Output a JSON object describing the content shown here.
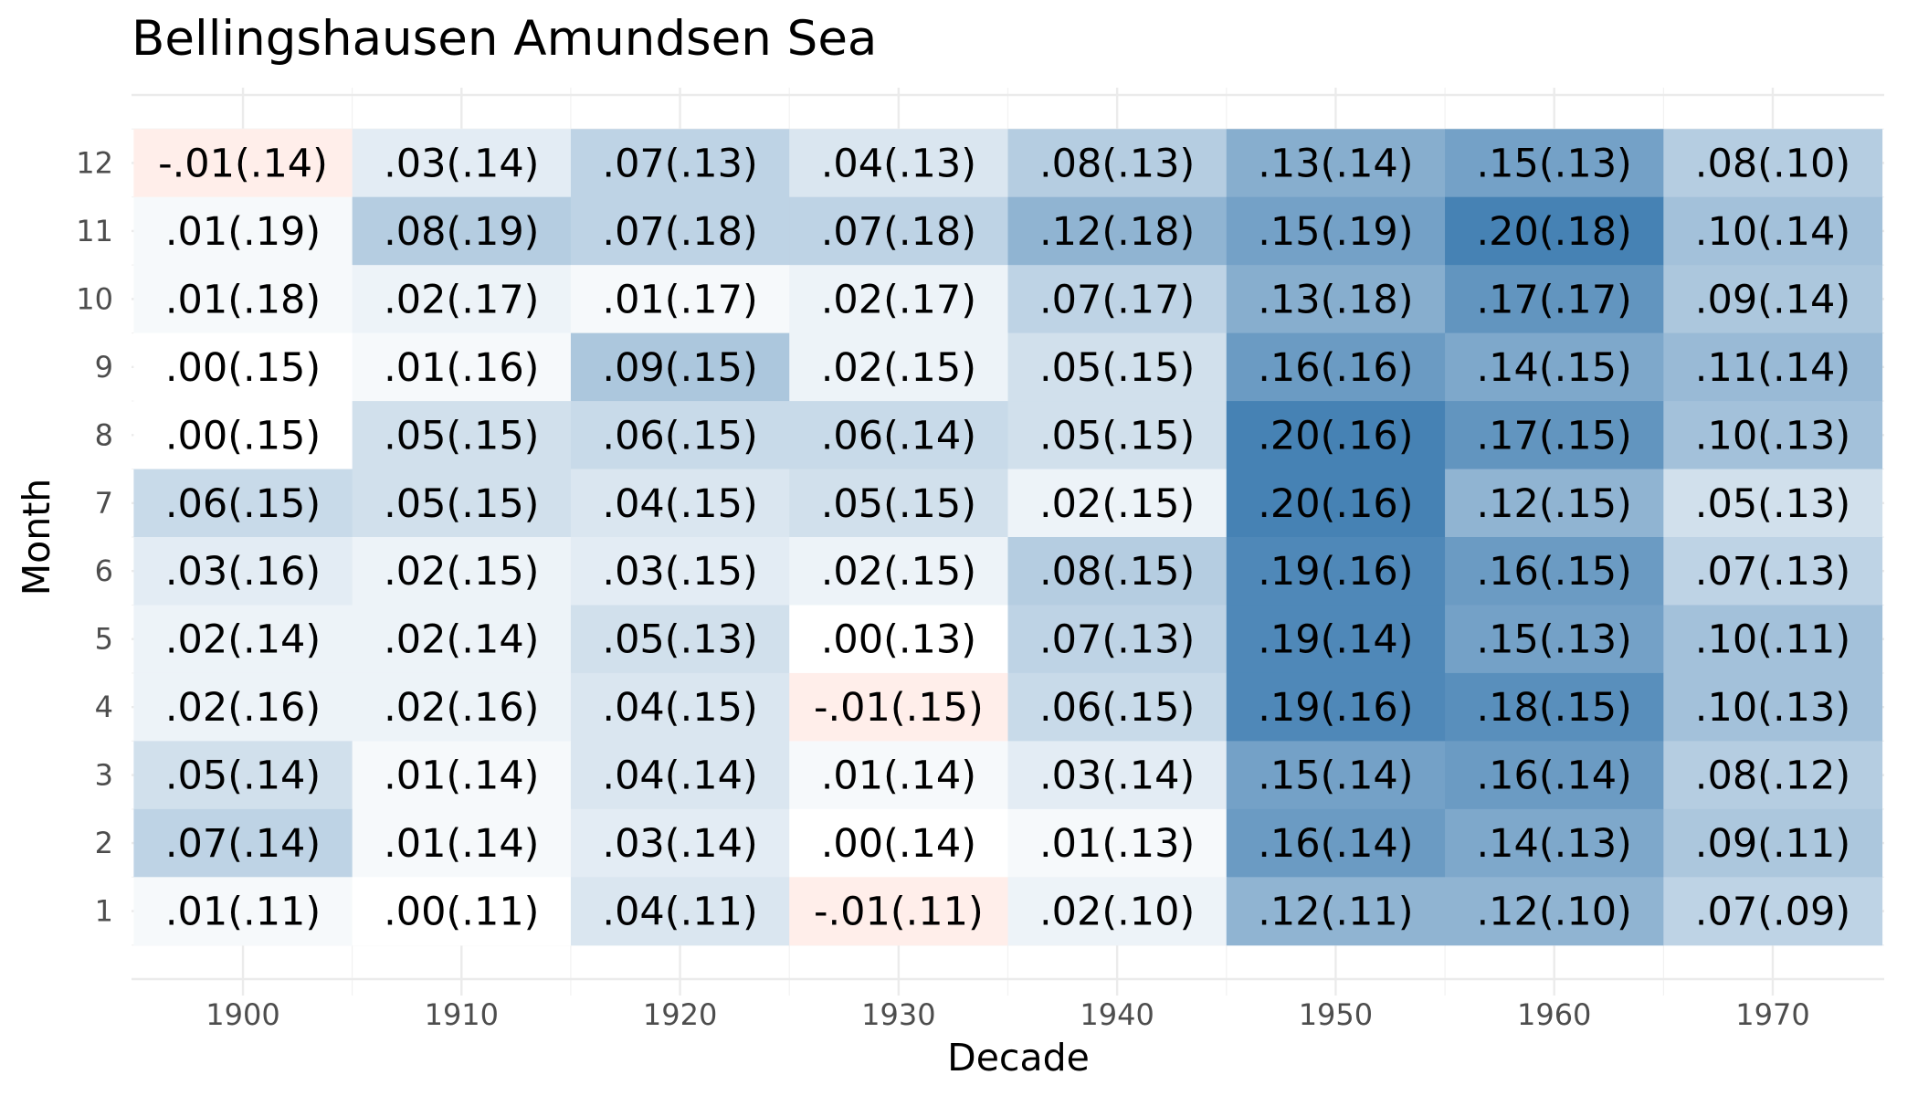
{
  "chart_data": {
    "type": "heatmap",
    "title": "Bellingshausen Amundsen Sea",
    "xlabel": "Decade",
    "ylabel": "Month",
    "x": [
      1900,
      1910,
      1920,
      1930,
      1940,
      1950,
      1960,
      1970
    ],
    "x_tick_labels": [
      "1900",
      "1910",
      "1920",
      "1930",
      "1940",
      "1950",
      "1960",
      "1970"
    ],
    "y": [
      1,
      2,
      3,
      4,
      5,
      6,
      7,
      8,
      9,
      10,
      11,
      12
    ],
    "y_tick_labels": [
      "1",
      "2",
      "3",
      "4",
      "5",
      "6",
      "7",
      "8",
      "9",
      "10",
      "11",
      "12"
    ],
    "grid": true,
    "legend": "none",
    "color_scale": {
      "negative": "#ffeeea",
      "zero": "#ffffff",
      "positive": "#4682b4"
    },
    "values": [
      [
        -0.01,
        0.03,
        0.07,
        0.04,
        0.08,
        0.13,
        0.15,
        0.08
      ],
      [
        0.01,
        0.08,
        0.07,
        0.07,
        0.12,
        0.15,
        0.2,
        0.1
      ],
      [
        0.01,
        0.02,
        0.01,
        0.02,
        0.07,
        0.13,
        0.17,
        0.09
      ],
      [
        0.0,
        0.01,
        0.09,
        0.02,
        0.05,
        0.16,
        0.14,
        0.11
      ],
      [
        0.0,
        0.05,
        0.06,
        0.06,
        0.05,
        0.2,
        0.17,
        0.1
      ],
      [
        0.06,
        0.05,
        0.04,
        0.05,
        0.02,
        0.2,
        0.12,
        0.05
      ],
      [
        0.03,
        0.02,
        0.03,
        0.02,
        0.08,
        0.19,
        0.16,
        0.07
      ],
      [
        0.02,
        0.02,
        0.05,
        0.0,
        0.07,
        0.19,
        0.15,
        0.1
      ],
      [
        0.02,
        0.02,
        0.04,
        -0.01,
        0.06,
        0.19,
        0.18,
        0.1
      ],
      [
        0.05,
        0.01,
        0.04,
        0.01,
        0.03,
        0.15,
        0.16,
        0.08
      ],
      [
        0.07,
        0.01,
        0.03,
        0.0,
        0.01,
        0.16,
        0.14,
        0.09
      ],
      [
        0.01,
        0.0,
        0.04,
        -0.01,
        0.02,
        0.12,
        0.12,
        0.07
      ]
    ],
    "labels": [
      [
        "-.01(.14)",
        ".03(.14)",
        ".07(.13)",
        ".04(.13)",
        ".08(.13)",
        ".13(.14)",
        ".15(.13)",
        ".08(.10)"
      ],
      [
        ".01(.19)",
        ".08(.19)",
        ".07(.18)",
        ".07(.18)",
        ".12(.18)",
        ".15(.19)",
        ".20(.18)",
        ".10(.14)"
      ],
      [
        ".01(.18)",
        ".02(.17)",
        ".01(.17)",
        ".02(.17)",
        ".07(.17)",
        ".13(.18)",
        ".17(.17)",
        ".09(.14)"
      ],
      [
        ".00(.15)",
        ".01(.16)",
        ".09(.15)",
        ".02(.15)",
        ".05(.15)",
        ".16(.16)",
        ".14(.15)",
        ".11(.14)"
      ],
      [
        ".00(.15)",
        ".05(.15)",
        ".06(.15)",
        ".06(.14)",
        ".05(.15)",
        ".20(.16)",
        ".17(.15)",
        ".10(.13)"
      ],
      [
        ".06(.15)",
        ".05(.15)",
        ".04(.15)",
        ".05(.15)",
        ".02(.15)",
        ".20(.16)",
        ".12(.15)",
        ".05(.13)"
      ],
      [
        ".03(.16)",
        ".02(.15)",
        ".03(.15)",
        ".02(.15)",
        ".08(.15)",
        ".19(.16)",
        ".16(.15)",
        ".07(.13)"
      ],
      [
        ".02(.14)",
        ".02(.14)",
        ".05(.13)",
        ".00(.13)",
        ".07(.13)",
        ".19(.14)",
        ".15(.13)",
        ".10(.11)"
      ],
      [
        ".02(.16)",
        ".02(.16)",
        ".04(.15)",
        "-.01(.15)",
        ".06(.15)",
        ".19(.16)",
        ".18(.15)",
        ".10(.13)"
      ],
      [
        ".05(.14)",
        ".01(.14)",
        ".04(.14)",
        ".01(.14)",
        ".03(.14)",
        ".15(.14)",
        ".16(.14)",
        ".08(.12)"
      ],
      [
        ".07(.14)",
        ".01(.14)",
        ".03(.14)",
        ".00(.14)",
        ".01(.13)",
        ".16(.14)",
        ".14(.13)",
        ".09(.11)"
      ],
      [
        ".01(.11)",
        ".00(.11)",
        ".04(.11)",
        "-.01(.11)",
        ".02(.10)",
        ".12(.11)",
        ".12(.10)",
        ".07(.09)"
      ]
    ]
  }
}
